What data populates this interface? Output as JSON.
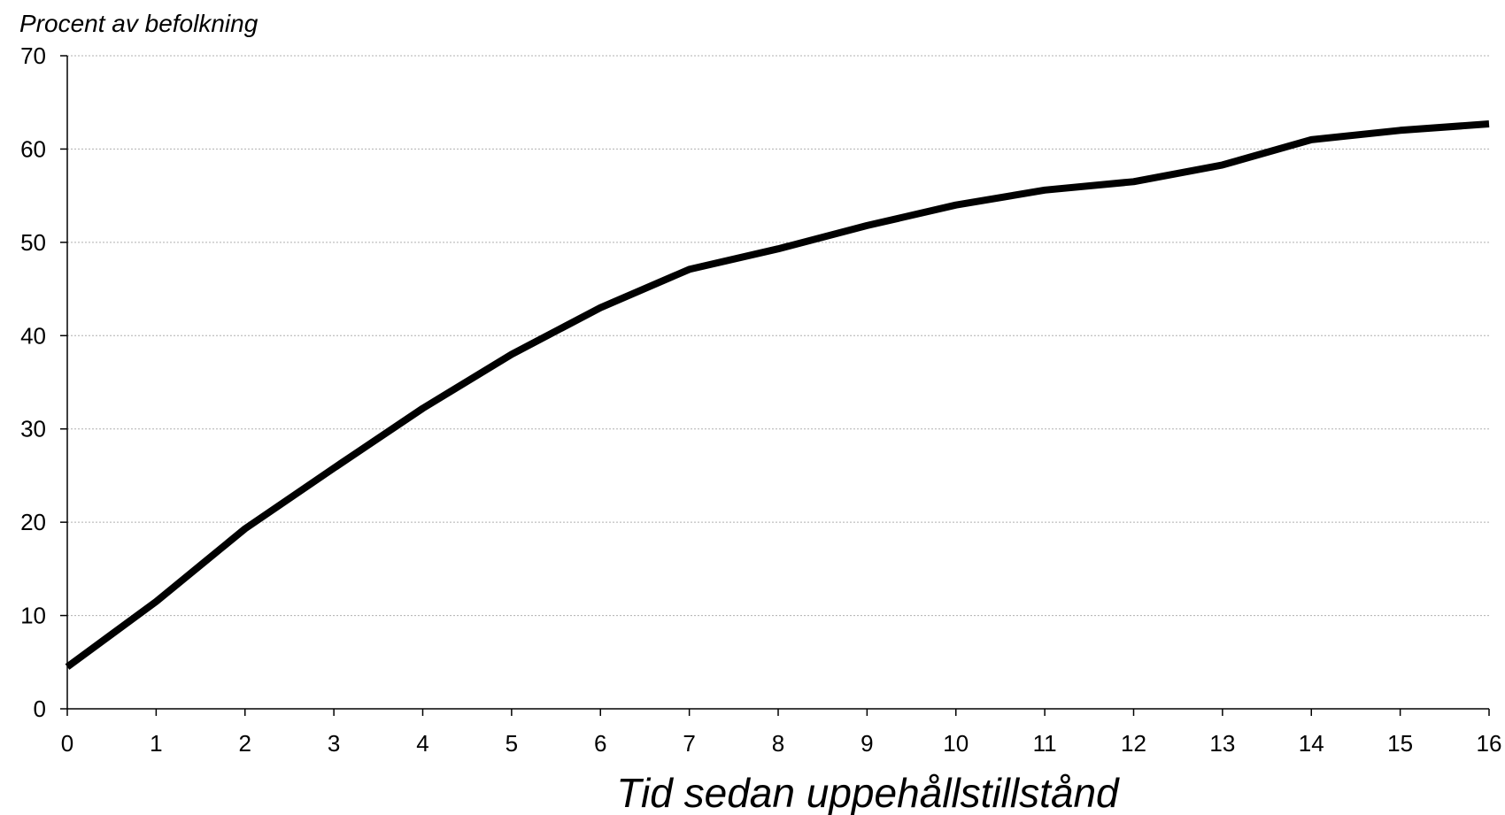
{
  "chart_data": {
    "type": "line",
    "ylabel": "Procent av befolkning",
    "xlabel": "Tid sedan uppehållstillstånd",
    "x": [
      0,
      1,
      2,
      3,
      4,
      5,
      6,
      7,
      8,
      9,
      10,
      11,
      12,
      13,
      14,
      15,
      16
    ],
    "series": [
      {
        "values": [
          4.5,
          11.5,
          19.3,
          25.8,
          32.2,
          38.0,
          43.0,
          47.1,
          49.3,
          51.8,
          54.0,
          55.6,
          56.5,
          58.3,
          61.0,
          62.0,
          62.7
        ]
      }
    ],
    "xlim": [
      0,
      16
    ],
    "ylim": [
      0,
      70
    ],
    "xticks": [
      "0",
      "1",
      "2",
      "3",
      "4",
      "5",
      "6",
      "7",
      "8",
      "9",
      "10",
      "11",
      "12",
      "13",
      "14",
      "15",
      "16"
    ],
    "yticks": [
      "0",
      "10",
      "20",
      "30",
      "40",
      "50",
      "60",
      "70"
    ],
    "grid": "horizontal",
    "line_color": "#000000"
  }
}
